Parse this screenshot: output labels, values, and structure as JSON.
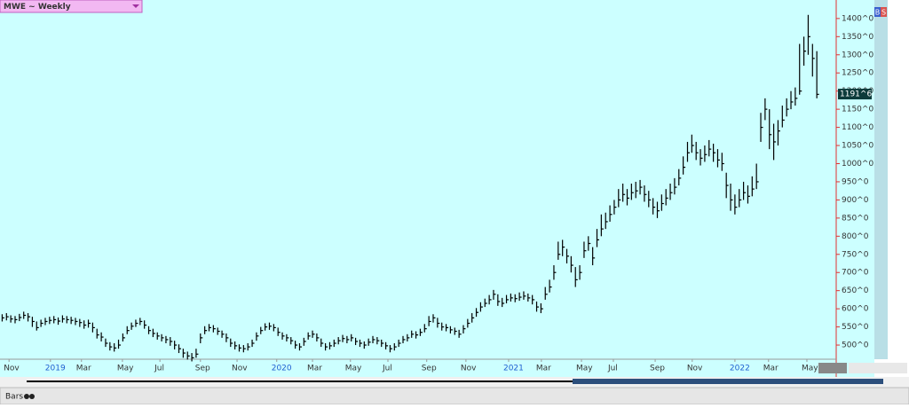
{
  "title": "MWE ~ Weekly",
  "footer_label": "Bars",
  "buttons": [
    "B",
    "S"
  ],
  "chart_data": {
    "type": "ohlc",
    "color": "#000000",
    "xlim": [
      0,
      194
    ],
    "xticks": [
      {
        "value": 2.1,
        "label": "Nov"
      },
      {
        "value": 11.7,
        "label": "2019"
      },
      {
        "value": 18.9,
        "label": "Mar"
      },
      {
        "value": 28.4,
        "label": "May"
      },
      {
        "value": 37.1,
        "label": "Jul"
      },
      {
        "value": 46.5,
        "label": "Sep"
      },
      {
        "value": 55,
        "label": "Nov"
      },
      {
        "value": 64.2,
        "label": "2020"
      },
      {
        "value": 72.5,
        "label": "Mar"
      },
      {
        "value": 81.3,
        "label": "May"
      },
      {
        "value": 90,
        "label": "Jul"
      },
      {
        "value": 99,
        "label": "Sep"
      },
      {
        "value": 108.1,
        "label": "Nov"
      },
      {
        "value": 118,
        "label": "2021"
      },
      {
        "value": 125.6,
        "label": "Mar"
      },
      {
        "value": 134.9,
        "label": "May"
      },
      {
        "value": 142.3,
        "label": "Jul"
      },
      {
        "value": 152,
        "label": "Sep"
      },
      {
        "value": 160.6,
        "label": "Nov"
      },
      {
        "value": 170.5,
        "label": "2022"
      },
      {
        "value": 178.3,
        "label": "Mar"
      },
      {
        "value": 187.2,
        "label": "May"
      }
    ],
    "ylim": [
      461,
      1451
    ],
    "yticks": [
      {
        "value": 500,
        "label": "500^0"
      },
      {
        "value": 550,
        "label": "550^0"
      },
      {
        "value": 600,
        "label": "600^0"
      },
      {
        "value": 650,
        "label": "650^0"
      },
      {
        "value": 700,
        "label": "700^0"
      },
      {
        "value": 750,
        "label": "750^0"
      },
      {
        "value": 800,
        "label": "800^0"
      },
      {
        "value": 850,
        "label": "850^0"
      },
      {
        "value": 900,
        "label": "900^0"
      },
      {
        "value": 950,
        "label": "950^0"
      },
      {
        "value": 1000,
        "label": "1000^0"
      },
      {
        "value": 1050,
        "label": "1050^0"
      },
      {
        "value": 1100,
        "label": "1100^0"
      },
      {
        "value": 1150,
        "label": "1150^0"
      },
      {
        "value": 1200,
        "label": "1200^0"
      },
      {
        "value": 1250,
        "label": "1250^0"
      },
      {
        "value": 1300,
        "label": "1300^0"
      },
      {
        "value": 1350,
        "label": "1350^0"
      },
      {
        "value": 1400,
        "label": "1400^0"
      }
    ],
    "last_price": {
      "value": 1191.75,
      "label": "1191^6"
    },
    "high": [
      585,
      588,
      582,
      580,
      586,
      592,
      588,
      578,
      565,
      570,
      575,
      578,
      580,
      576,
      582,
      580,
      578,
      575,
      572,
      568,
      570,
      562,
      545,
      535,
      518,
      508,
      505,
      515,
      532,
      552,
      562,
      570,
      575,
      568,
      552,
      545,
      535,
      530,
      525,
      522,
      512,
      502,
      490,
      482,
      478,
      490,
      532,
      552,
      558,
      555,
      548,
      540,
      532,
      518,
      510,
      502,
      500,
      505,
      515,
      535,
      550,
      560,
      562,
      558,
      548,
      535,
      530,
      522,
      512,
      505,
      520,
      535,
      540,
      532,
      518,
      505,
      508,
      515,
      522,
      528,
      525,
      530,
      520,
      515,
      510,
      518,
      525,
      522,
      515,
      508,
      500,
      505,
      515,
      525,
      530,
      540,
      538,
      545,
      558,
      580,
      585,
      575,
      562,
      558,
      552,
      548,
      542,
      555,
      572,
      588,
      602,
      618,
      628,
      638,
      652,
      640,
      630,
      638,
      642,
      640,
      645,
      648,
      642,
      638,
      620,
      615,
      660,
      680,
      720,
      785,
      790,
      765,
      745,
      715,
      720,
      785,
      800,
      770,
      820,
      860,
      865,
      885,
      900,
      930,
      945,
      930,
      945,
      950,
      955,
      940,
      925,
      905,
      895,
      915,
      930,
      945,
      960,
      985,
      1020,
      1060,
      1080,
      1060,
      1040,
      1050,
      1065,
      1055,
      1040,
      1030,
      975,
      945,
      915,
      930,
      950,
      940,
      965,
      1000,
      1140,
      1180,
      1150,
      1110,
      1120,
      1160,
      1180,
      1200,
      1210,
      1330,
      1350,
      1410,
      1330,
      1310
    ],
    "low": [
      565,
      568,
      562,
      560,
      566,
      572,
      565,
      550,
      540,
      550,
      555,
      558,
      560,
      556,
      562,
      560,
      558,
      555,
      550,
      545,
      548,
      535,
      518,
      510,
      495,
      485,
      482,
      490,
      510,
      530,
      542,
      550,
      555,
      545,
      530,
      522,
      515,
      510,
      505,
      498,
      488,
      478,
      465,
      460,
      455,
      465,
      505,
      530,
      538,
      535,
      528,
      520,
      508,
      495,
      488,
      482,
      480,
      485,
      495,
      512,
      530,
      540,
      542,
      538,
      525,
      515,
      510,
      502,
      490,
      485,
      498,
      515,
      520,
      510,
      495,
      485,
      488,
      495,
      502,
      508,
      505,
      510,
      500,
      495,
      490,
      498,
      505,
      502,
      495,
      488,
      480,
      485,
      495,
      505,
      510,
      520,
      518,
      525,
      535,
      552,
      562,
      548,
      540,
      538,
      532,
      528,
      520,
      532,
      548,
      562,
      578,
      592,
      605,
      612,
      625,
      608,
      605,
      615,
      620,
      618,
      622,
      625,
      620,
      612,
      592,
      588,
      625,
      645,
      680,
      735,
      745,
      725,
      700,
      660,
      680,
      740,
      760,
      720,
      770,
      800,
      820,
      840,
      860,
      880,
      895,
      885,
      900,
      905,
      915,
      895,
      880,
      860,
      850,
      870,
      885,
      900,
      915,
      940,
      970,
      1005,
      1030,
      1010,
      995,
      1005,
      1020,
      1005,
      990,
      980,
      905,
      870,
      860,
      880,
      900,
      890,
      910,
      930,
      1060,
      1120,
      1040,
      1010,
      1050,
      1100,
      1130,
      1150,
      1160,
      1190,
      1270,
      1300,
      1240,
      1180
    ],
    "close": [
      575,
      578,
      572,
      570,
      576,
      582,
      578,
      565,
      548,
      560,
      565,
      568,
      570,
      566,
      572,
      570,
      568,
      565,
      562,
      555,
      560,
      548,
      528,
      522,
      505,
      495,
      492,
      500,
      520,
      540,
      552,
      560,
      565,
      555,
      540,
      532,
      525,
      520,
      515,
      510,
      500,
      490,
      478,
      470,
      465,
      475,
      520,
      540,
      548,
      545,
      538,
      530,
      520,
      505,
      498,
      492,
      490,
      495,
      505,
      525,
      540,
      550,
      552,
      548,
      535,
      525,
      520,
      512,
      500,
      495,
      510,
      525,
      530,
      520,
      505,
      495,
      498,
      505,
      512,
      518,
      515,
      520,
      510,
      505,
      500,
      508,
      515,
      512,
      505,
      498,
      490,
      495,
      505,
      515,
      520,
      530,
      528,
      535,
      545,
      565,
      575,
      560,
      550,
      548,
      542,
      538,
      530,
      545,
      560,
      575,
      590,
      605,
      615,
      625,
      640,
      620,
      615,
      625,
      630,
      628,
      632,
      635,
      630,
      625,
      605,
      600,
      640,
      660,
      700,
      750,
      770,
      745,
      720,
      680,
      700,
      760,
      780,
      740,
      790,
      820,
      840,
      860,
      880,
      900,
      915,
      905,
      920,
      925,
      935,
      915,
      900,
      880,
      870,
      890,
      905,
      920,
      935,
      960,
      990,
      1030,
      1050,
      1030,
      1015,
      1025,
      1040,
      1030,
      1010,
      1000,
      940,
      900,
      880,
      900,
      920,
      910,
      930,
      950,
      1100,
      1150,
      1080,
      1060,
      1090,
      1120,
      1150,
      1170,
      1180,
      1200,
      1310,
      1350,
      1290,
      1191
    ]
  }
}
